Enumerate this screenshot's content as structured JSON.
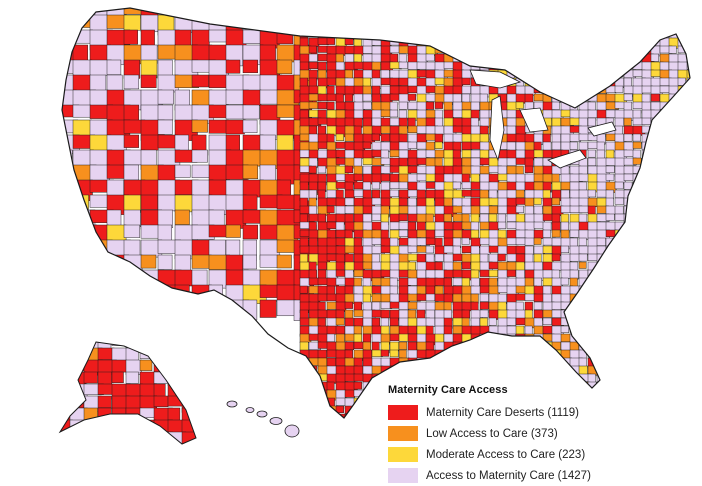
{
  "map": {
    "region": "contiguous-us-alaska-hawaii",
    "unit": "county",
    "palette": {
      "desert": "#ee1c1c",
      "low": "#f7901e",
      "moderate": "#fdd83a",
      "full": "#e6d3f1",
      "border": "#1b1b1b"
    }
  },
  "legend": {
    "title": "Maternity Care Access",
    "items": [
      {
        "label": "Maternity Care Deserts (1119)",
        "color": "#ee1c1c"
      },
      {
        "label": "Low Access to Care (373)",
        "color": "#f7901e"
      },
      {
        "label": "Moderate Access to Care (223)",
        "color": "#fdd83a"
      },
      {
        "label": "Access to Maternity Care (1427)",
        "color": "#e6d3f1"
      }
    ]
  }
}
